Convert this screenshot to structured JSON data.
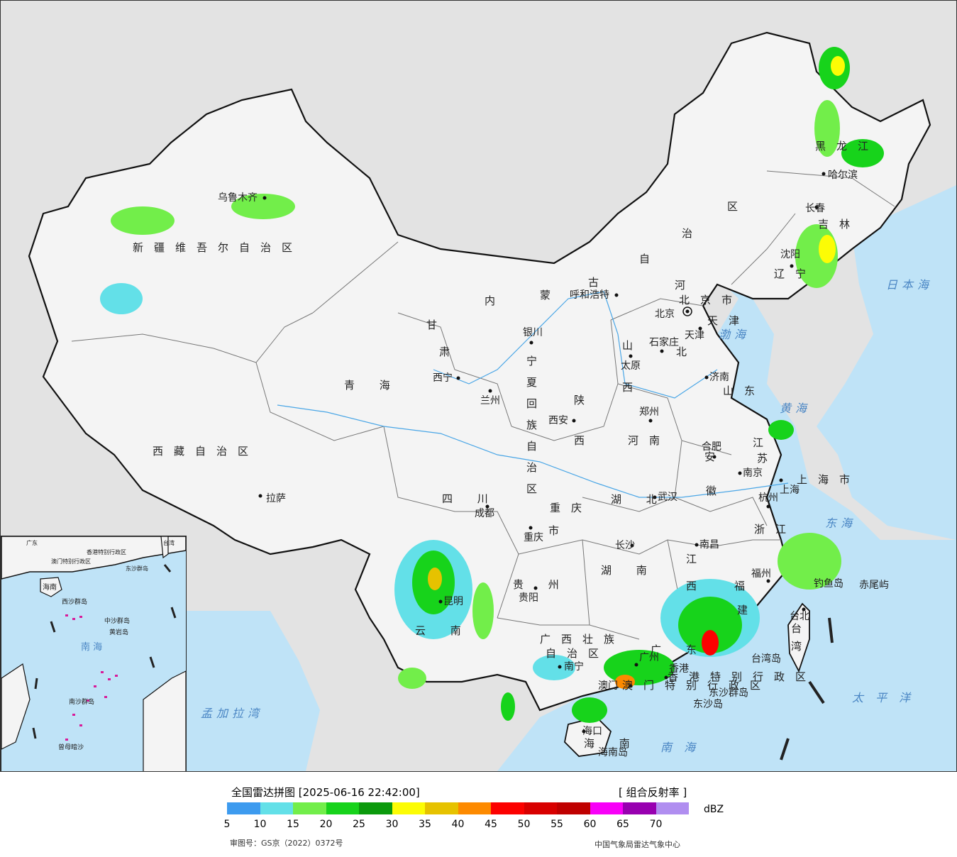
{
  "map": {
    "colors": {
      "land": "#f4f4f4",
      "outside_land": "#e3e3e3",
      "sea": "#bfe3f7",
      "border": "#111111",
      "province_line": "#777777",
      "river": "#4aa6e6",
      "south_sea_islands": "#d81b9a"
    },
    "provinces": [
      {
        "id": "xinjiang",
        "label": "新疆维吾尔自治区"
      },
      {
        "id": "xizang",
        "label": "西藏自治区"
      },
      {
        "id": "qinghai",
        "label": "青 海"
      },
      {
        "id": "gansu",
        "label": "甘"
      },
      {
        "id": "gansu2",
        "label": "肃"
      },
      {
        "id": "neimenggu",
        "label": "内"
      },
      {
        "id": "neimenggu2",
        "label": "蒙"
      },
      {
        "id": "neimenggu3",
        "label": "古"
      },
      {
        "id": "neimenggu4",
        "label": "自"
      },
      {
        "id": "neimenggu5",
        "label": "治"
      },
      {
        "id": "neimenggu6",
        "label": "区"
      },
      {
        "id": "heilongjiang",
        "label": "黑龙江"
      },
      {
        "id": "jilin",
        "label": "吉林"
      },
      {
        "id": "liaoning",
        "label": "辽宁"
      },
      {
        "id": "hebei",
        "label": "河"
      },
      {
        "id": "hebei2",
        "label": "北"
      },
      {
        "id": "shanxi",
        "label": "山"
      },
      {
        "id": "shanxi2",
        "label": "西"
      },
      {
        "id": "shandong",
        "label": "山东"
      },
      {
        "id": "shaanxi",
        "label": "陕"
      },
      {
        "id": "shaanxi2",
        "label": "西"
      },
      {
        "id": "henan",
        "label": "河南"
      },
      {
        "id": "jiangsu",
        "label": "江"
      },
      {
        "id": "jiangsu2",
        "label": "苏"
      },
      {
        "id": "anhui",
        "label": "安"
      },
      {
        "id": "anhui2",
        "label": "徽"
      },
      {
        "id": "shanghai",
        "label": "上海市"
      },
      {
        "id": "zhejiang",
        "label": "浙江"
      },
      {
        "id": "sichuan",
        "label": "四 川"
      },
      {
        "id": "chongqing",
        "label": "重庆"
      },
      {
        "id": "chongqing2",
        "label": "市"
      },
      {
        "id": "hubei",
        "label": "湖 北"
      },
      {
        "id": "hunan",
        "label": "湖 南"
      },
      {
        "id": "jiangxi",
        "label": "江"
      },
      {
        "id": "jiangxi2",
        "label": "西"
      },
      {
        "id": "fujian",
        "label": "福"
      },
      {
        "id": "fujian2",
        "label": "建"
      },
      {
        "id": "guizhou",
        "label": "贵 州"
      },
      {
        "id": "yunnan",
        "label": "云 南"
      },
      {
        "id": "guangxi",
        "label": "广西壮族"
      },
      {
        "id": "guangxi2",
        "label": "自治区"
      },
      {
        "id": "guangdong",
        "label": "广 东"
      },
      {
        "id": "hainan",
        "label": "海 南"
      },
      {
        "id": "taiwan",
        "label": "台"
      },
      {
        "id": "taiwan2",
        "label": "湾"
      },
      {
        "id": "ningxia",
        "label": "宁夏回族自治区"
      },
      {
        "id": "tianjin",
        "label": "天津"
      },
      {
        "id": "beijing",
        "label": "北京市"
      },
      {
        "id": "hongkong",
        "label": "香港特别行政区"
      },
      {
        "id": "macau",
        "label": "澳门特别行政区"
      }
    ],
    "cities": [
      {
        "id": "urumqi",
        "label": "乌鲁木齐"
      },
      {
        "id": "lhasa",
        "label": "拉萨"
      },
      {
        "id": "xining",
        "label": "西宁"
      },
      {
        "id": "lanzhou",
        "label": "兰州"
      },
      {
        "id": "yinchuan",
        "label": "银川"
      },
      {
        "id": "hohhot",
        "label": "呼和浩特"
      },
      {
        "id": "harbin",
        "label": "哈尔滨"
      },
      {
        "id": "changchun",
        "label": "长春"
      },
      {
        "id": "shenyang",
        "label": "沈阳"
      },
      {
        "id": "beijing",
        "label": "北京"
      },
      {
        "id": "tianjin",
        "label": "天津"
      },
      {
        "id": "shijiazhuang",
        "label": "石家庄"
      },
      {
        "id": "taiyuan",
        "label": "太原"
      },
      {
        "id": "jinan",
        "label": "济南"
      },
      {
        "id": "zhengzhou",
        "label": "郑州"
      },
      {
        "id": "xian",
        "label": "西安"
      },
      {
        "id": "nanjing",
        "label": "南京"
      },
      {
        "id": "hefei",
        "label": "合肥"
      },
      {
        "id": "shanghai",
        "label": "上海"
      },
      {
        "id": "hangzhou",
        "label": "杭州"
      },
      {
        "id": "wuhan",
        "label": "武汉"
      },
      {
        "id": "chengdu",
        "label": "成都"
      },
      {
        "id": "chongqing",
        "label": "重庆"
      },
      {
        "id": "changsha",
        "label": "长沙"
      },
      {
        "id": "nanchang",
        "label": "南昌"
      },
      {
        "id": "fuzhou",
        "label": "福州"
      },
      {
        "id": "guiyang",
        "label": "贵阳"
      },
      {
        "id": "kunming",
        "label": "昆明"
      },
      {
        "id": "nanning",
        "label": "南宁"
      },
      {
        "id": "guangzhou",
        "label": "广州"
      },
      {
        "id": "hongkong",
        "label": "香港"
      },
      {
        "id": "macau",
        "label": "澳门"
      },
      {
        "id": "haikou",
        "label": "海口"
      },
      {
        "id": "taibei",
        "label": "台北"
      }
    ],
    "other_labels": [
      {
        "id": "bohai",
        "label": "渤海"
      },
      {
        "id": "huanghai",
        "label": "黄海"
      },
      {
        "id": "donghai",
        "label": "东海"
      },
      {
        "id": "nanhai",
        "label": "南 海"
      },
      {
        "id": "taipingyang",
        "label": "太 平 洋"
      },
      {
        "id": "ribenhai",
        "label": "日本海"
      },
      {
        "id": "mengjiala",
        "label": "孟加拉湾"
      },
      {
        "id": "diaoyudao",
        "label": "钓鱼岛"
      },
      {
        "id": "chiweiyu",
        "label": "赤尾屿"
      },
      {
        "id": "taiwandao",
        "label": "台湾岛"
      },
      {
        "id": "dongshaqundao",
        "label": "东沙群岛"
      },
      {
        "id": "dongshadao",
        "label": "东沙岛"
      },
      {
        "id": "hainandao",
        "label": "海南岛"
      }
    ],
    "inset": {
      "labels": [
        {
          "id": "inset-nanhai",
          "label": "南 海"
        },
        {
          "id": "inset-hainan",
          "label": "海南"
        },
        {
          "id": "inset-xisha",
          "label": "西沙群岛"
        },
        {
          "id": "inset-zhongsha",
          "label": "中沙群岛"
        },
        {
          "id": "inset-nansha",
          "label": "南沙群岛"
        },
        {
          "id": "inset-zengmu",
          "label": "曾母暗沙"
        },
        {
          "id": "inset-huangyan",
          "label": "黄岩岛"
        },
        {
          "id": "inset-hongkong",
          "label": "香港特别行政区"
        },
        {
          "id": "inset-macau",
          "label": "澳门特别行政区"
        },
        {
          "id": "inset-dongsha",
          "label": "东沙群岛"
        },
        {
          "id": "inset-taiwan",
          "label": "台湾"
        },
        {
          "id": "inset-guangdong",
          "label": "广东"
        }
      ]
    }
  },
  "legend": {
    "title": "全国雷达拼图 [2025-06-16 22:42:00]",
    "product": "[ 组合反射率 ]",
    "unit": "dBZ",
    "colors": [
      "#3d9bef",
      "#63e0e8",
      "#72ee4a",
      "#17d31b",
      "#0b9a0c",
      "#fcfc05",
      "#e6c200",
      "#fd8a00",
      "#fc0100",
      "#d80000",
      "#bf0000",
      "#f800f8",
      "#9800b0",
      "#b08ef0"
    ],
    "ticks": [
      "5",
      "10",
      "15",
      "20",
      "25",
      "30",
      "35",
      "40",
      "45",
      "50",
      "55",
      "60",
      "65",
      "70"
    ],
    "approval": "审图号：GS京（2022）0372号",
    "source": "中国气象局雷达气象中心"
  }
}
